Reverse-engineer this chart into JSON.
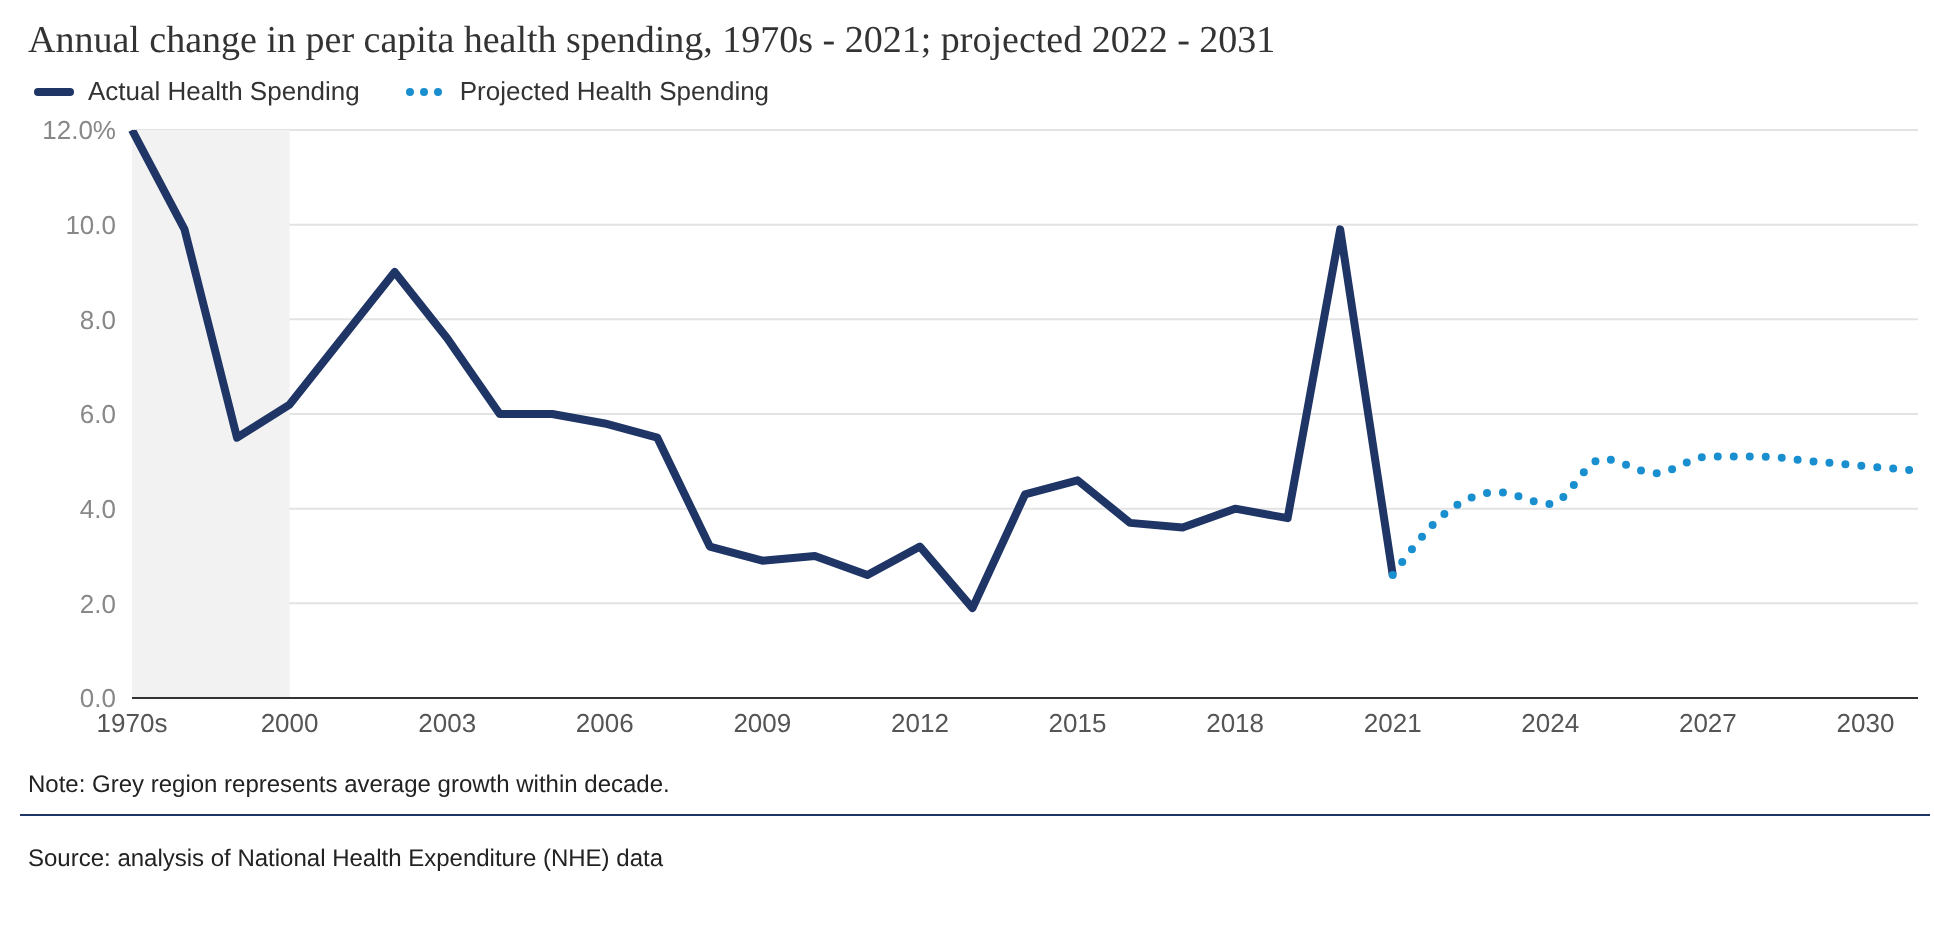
{
  "chart_data": {
    "type": "line",
    "title": "Annual change in per capita health spending, 1970s - 2021; projected 2022 - 2031",
    "categories": [
      "1970s",
      null,
      null,
      "2000",
      null,
      null,
      "2003",
      null,
      null,
      "2006",
      null,
      null,
      "2009",
      null,
      null,
      "2012",
      null,
      null,
      "2015",
      null,
      null,
      "2018",
      null,
      null,
      "2021",
      null,
      null,
      "2024",
      null,
      null,
      "2027",
      null,
      null,
      "2030",
      null
    ],
    "series": [
      {
        "name": "Actual Health Spending",
        "color": "#1f3566",
        "line_style": "solid",
        "values": [
          12.0,
          9.9,
          5.5,
          6.2,
          7.6,
          9.0,
          7.6,
          6.0,
          6.0,
          5.8,
          5.5,
          3.2,
          2.9,
          3.0,
          2.6,
          3.2,
          1.9,
          4.3,
          4.6,
          3.7,
          3.6,
          4.0,
          3.8,
          9.9,
          2.6,
          null,
          null,
          null,
          null,
          null,
          null,
          null,
          null,
          null,
          null
        ]
      },
      {
        "name": "Projected Health Spending",
        "color": "#1a8fd0",
        "line_style": "dotted",
        "values": [
          null,
          null,
          null,
          null,
          null,
          null,
          null,
          null,
          null,
          null,
          null,
          null,
          null,
          null,
          null,
          null,
          null,
          null,
          null,
          null,
          null,
          null,
          null,
          null,
          2.6,
          3.9,
          4.35,
          4.1,
          5.05,
          4.75,
          5.1,
          5.1,
          5.0,
          4.9,
          4.8
        ]
      }
    ],
    "ylim": [
      0,
      12
    ],
    "yticks": [
      {
        "value": 0,
        "label": "0.0"
      },
      {
        "value": 2,
        "label": "2.0"
      },
      {
        "value": 4,
        "label": "4.0"
      },
      {
        "value": 6,
        "label": "6.0"
      },
      {
        "value": 8,
        "label": "8.0"
      },
      {
        "value": 10,
        "label": "10.0"
      },
      {
        "value": 12,
        "label": "12.0%"
      }
    ],
    "grid": "y",
    "legend": "top left",
    "marker": "none",
    "bands": [
      {
        "axis": "x",
        "from": "1970s",
        "to": "2000",
        "color": "#f2f2f2"
      }
    ],
    "annotations": [
      "Note: Grey region represents average growth within decade.",
      "Source: analysis of National Health Expenditure (NHE) data"
    ]
  }
}
